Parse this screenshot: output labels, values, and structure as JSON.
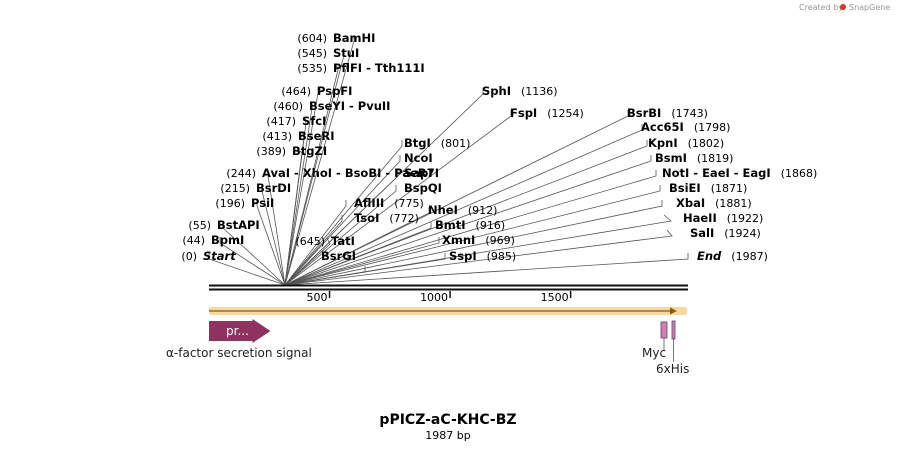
{
  "credit": {
    "text": "Created by",
    "brand": "SnapGene"
  },
  "title": "pPICZ-aC-KHC-BZ",
  "subtitle": "1987 bp",
  "sequence_length": 1987,
  "ticks": [
    {
      "value": 500,
      "label": "500"
    },
    {
      "value": 1000,
      "label": "1000"
    },
    {
      "value": 1500,
      "label": "1500"
    }
  ],
  "sites": [
    {
      "name": "BamHI",
      "pos": "(604)",
      "site": 604
    },
    {
      "name": "StuI",
      "pos": "(545)",
      "site": 545
    },
    {
      "name": "PflFI  -  Tth111I",
      "pos": "(535)",
      "site": 535
    },
    {
      "name": "PspFI",
      "pos": "(464)",
      "site": 464
    },
    {
      "name": "BseYI  -  PvuII",
      "pos": "(460)",
      "site": 460
    },
    {
      "name": "SfcI",
      "pos": "(417)",
      "site": 417
    },
    {
      "name": "BseRI",
      "pos": "(413)",
      "site": 413
    },
    {
      "name": "BtgZI",
      "pos": "(389)",
      "site": 389
    },
    {
      "name": "AvaI  -  XhoI  -  BsoBI  -  PaeR7I",
      "pos": "(244)",
      "site": 244
    },
    {
      "name": "BsrDI",
      "pos": "(215)",
      "site": 215
    },
    {
      "name": "PsiI",
      "pos": "(196)",
      "site": 196
    },
    {
      "name": "BstAPI",
      "pos": "(55)",
      "site": 55
    },
    {
      "name": "BpmI",
      "pos": "(44)",
      "site": 44
    },
    {
      "name": "Start",
      "pos": "(0)",
      "site": 0,
      "special": true
    },
    {
      "name": "AflIII",
      "pos": "(775)",
      "site": 775
    },
    {
      "name": "TsoI",
      "pos": "(772)",
      "site": 772
    },
    {
      "name": "TatI",
      "pos": "(645)",
      "site": 645
    },
    {
      "name": "BsrGI",
      "pos": "",
      "site": 645
    },
    {
      "name": "BtgI",
      "pos": "(801)",
      "site": 801
    },
    {
      "name": "NcoI",
      "pos": "",
      "site": 801
    },
    {
      "name": "SapI",
      "pos": "",
      "site": 801
    },
    {
      "name": "BspQI",
      "pos": "",
      "site": 801
    },
    {
      "name": "NheI",
      "pos": "(912)",
      "site": 912
    },
    {
      "name": "BmtI",
      "pos": "(916)",
      "site": 916
    },
    {
      "name": "XmnI",
      "pos": "(969)",
      "site": 969
    },
    {
      "name": "SspI",
      "pos": "(985)",
      "site": 985
    },
    {
      "name": "SphI",
      "pos": "(1136)",
      "site": 1136
    },
    {
      "name": "FspI",
      "pos": "(1254)",
      "site": 1254
    },
    {
      "name": "BsrBI",
      "pos": "(1743)",
      "site": 1743
    },
    {
      "name": "Acc65I",
      "pos": "(1798)",
      "site": 1798
    },
    {
      "name": "KpnI",
      "pos": "(1802)",
      "site": 1802
    },
    {
      "name": "BsmI",
      "pos": "(1819)",
      "site": 1819
    },
    {
      "name": "NotI  -  EaeI  -  EagI",
      "pos": "(1868)",
      "site": 1868
    },
    {
      "name": "BsiEI",
      "pos": "(1871)",
      "site": 1871
    },
    {
      "name": "XbaI",
      "pos": "(1881)",
      "site": 1881
    },
    {
      "name": "HaeII",
      "pos": "(1922)",
      "site": 1922
    },
    {
      "name": "SalI",
      "pos": "(1924)",
      "site": 1924
    },
    {
      "name": "End",
      "pos": "(1987)",
      "site": 1987,
      "special": true
    }
  ],
  "features": [
    {
      "name": "α-factor secretion signal",
      "short": "pr...",
      "start": 0,
      "end": 255,
      "color": "#8e3360"
    },
    {
      "name": "Myc",
      "short": "",
      "start": 1889,
      "end": 1919,
      "color": "#c983b5"
    },
    {
      "name": "6xHis",
      "short": "",
      "start": 1935,
      "end": 1953,
      "color": "#c983b5"
    }
  ],
  "colors": {
    "orf_track": "#f0b43c",
    "backbone": "#111111",
    "brand": "#d9342b"
  }
}
